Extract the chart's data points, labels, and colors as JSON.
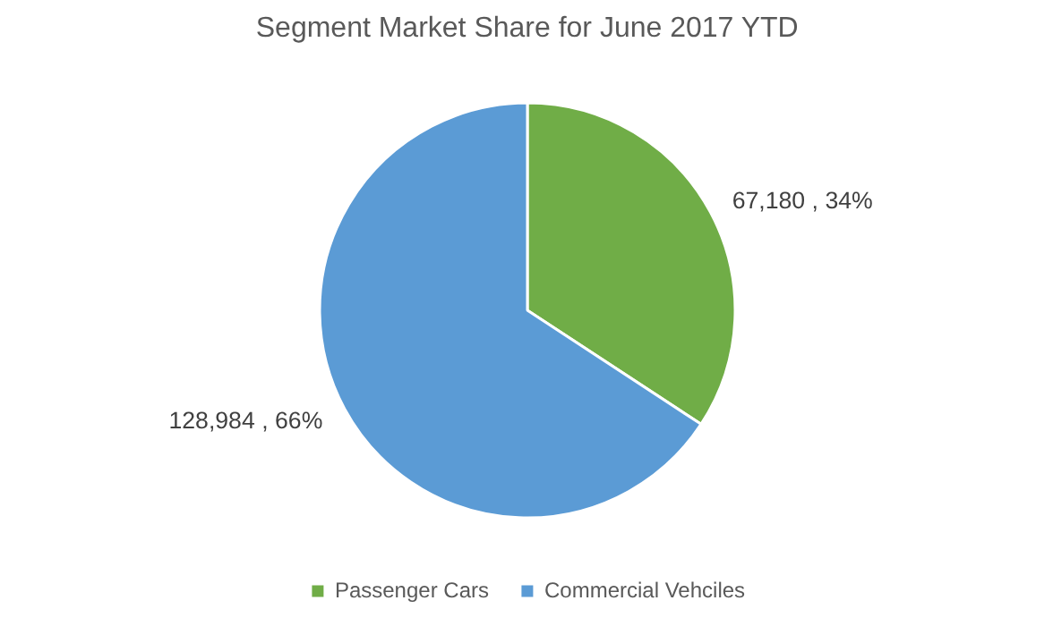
{
  "chart_data": {
    "type": "pie",
    "title": "Segment Market Share for June 2017 YTD",
    "categories": [
      "Passenger Cars",
      "Commercial Vehciles"
    ],
    "values": [
      67180,
      128984
    ],
    "colors": [
      "#70ad47",
      "#5b9bd5"
    ],
    "value_labels": [
      "67,180 , 34%",
      "128,984 , 66%"
    ],
    "legend": "bottom"
  }
}
